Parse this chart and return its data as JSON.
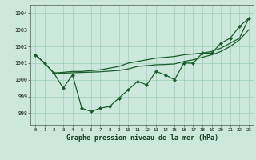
{
  "background_color": "#cce8dc",
  "grid_color": "#9ecfba",
  "line_color": "#1a5c2a",
  "title": "Graphe pression niveau de la mer (hPa)",
  "xlim": [
    -0.5,
    23.5
  ],
  "ylim": [
    997.3,
    1004.5
  ],
  "yticks": [
    998,
    999,
    1000,
    1001,
    1002,
    1003,
    1004
  ],
  "xticks": [
    0,
    1,
    2,
    3,
    4,
    5,
    6,
    7,
    8,
    9,
    10,
    11,
    12,
    13,
    14,
    15,
    16,
    17,
    18,
    19,
    20,
    21,
    22,
    23
  ],
  "series1": [
    1001.5,
    1001.0,
    1000.4,
    999.5,
    1000.3,
    998.3,
    998.1,
    998.3,
    998.4,
    998.9,
    999.4,
    999.9,
    999.7,
    1000.5,
    1000.3,
    1000.0,
    1001.0,
    1001.0,
    1001.6,
    1001.6,
    1002.2,
    1002.5,
    1003.2,
    1003.7
  ],
  "series2": [
    1001.5,
    1001.0,
    1000.4,
    1000.45,
    1000.5,
    1000.5,
    1000.55,
    1000.6,
    1000.7,
    1000.8,
    1001.0,
    1001.1,
    1001.2,
    1001.3,
    1001.35,
    1001.4,
    1001.5,
    1001.55,
    1001.6,
    1001.7,
    1001.9,
    1002.2,
    1002.5,
    1003.7
  ],
  "series3": [
    1001.5,
    1001.0,
    1000.4,
    1000.4,
    1000.42,
    1000.44,
    1000.46,
    1000.48,
    1000.52,
    1000.56,
    1000.65,
    1000.8,
    1000.85,
    1000.9,
    1000.92,
    1000.95,
    1001.1,
    1001.2,
    1001.35,
    1001.5,
    1001.7,
    1002.0,
    1002.4,
    1003.0
  ]
}
